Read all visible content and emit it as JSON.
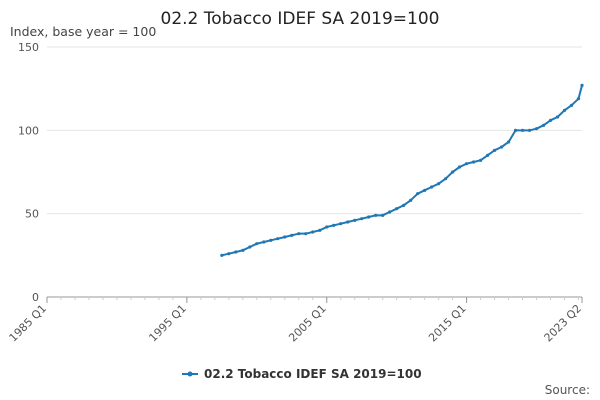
{
  "chart_data": {
    "type": "line",
    "title": "02.2 Tobacco IDEF SA 2019=100",
    "ylabel": "Index, base year = 100",
    "xlabel": "",
    "x_ticks": [
      "1985 Q1",
      "1995 Q1",
      "2005 Q1",
      "2015 Q1",
      "2023 Q2"
    ],
    "y_ticks": [
      "0",
      "50",
      "100",
      "150"
    ],
    "ylim": [
      0,
      150
    ],
    "xlim": [
      "1985 Q1",
      "2023 Q2"
    ],
    "grid": true,
    "legend_position": "bottom",
    "source_label": "Source:",
    "series": [
      {
        "name": "02.2 Tobacco IDEF SA 2019=100",
        "color": "#1f77b4",
        "x": [
          "1997 Q3",
          "1998 Q1",
          "1998 Q3",
          "1999 Q1",
          "1999 Q3",
          "2000 Q1",
          "2000 Q3",
          "2001 Q1",
          "2001 Q3",
          "2002 Q1",
          "2002 Q3",
          "2003 Q1",
          "2003 Q3",
          "2004 Q1",
          "2004 Q3",
          "2005 Q1",
          "2005 Q3",
          "2006 Q1",
          "2006 Q3",
          "2007 Q1",
          "2007 Q3",
          "2008 Q1",
          "2008 Q3",
          "2009 Q1",
          "2009 Q3",
          "2010 Q1",
          "2010 Q3",
          "2011 Q1",
          "2011 Q3",
          "2012 Q1",
          "2012 Q3",
          "2013 Q1",
          "2013 Q3",
          "2014 Q1",
          "2014 Q3",
          "2015 Q1",
          "2015 Q3",
          "2016 Q1",
          "2016 Q3",
          "2017 Q1",
          "2017 Q3",
          "2018 Q1",
          "2018 Q3",
          "2019 Q1",
          "2019 Q3",
          "2020 Q1",
          "2020 Q3",
          "2021 Q1",
          "2021 Q3",
          "2022 Q1",
          "2022 Q3",
          "2023 Q1",
          "2023 Q2"
        ],
        "y": [
          25,
          26,
          27,
          28,
          30,
          32,
          33,
          34,
          35,
          36,
          37,
          38,
          38,
          39,
          40,
          42,
          43,
          44,
          45,
          46,
          47,
          48,
          49,
          49,
          51,
          53,
          55,
          58,
          62,
          64,
          66,
          68,
          71,
          75,
          78,
          80,
          81,
          82,
          85,
          88,
          90,
          93,
          100,
          100,
          100,
          101,
          103,
          106,
          108,
          112,
          115,
          119,
          127
        ]
      }
    ]
  }
}
